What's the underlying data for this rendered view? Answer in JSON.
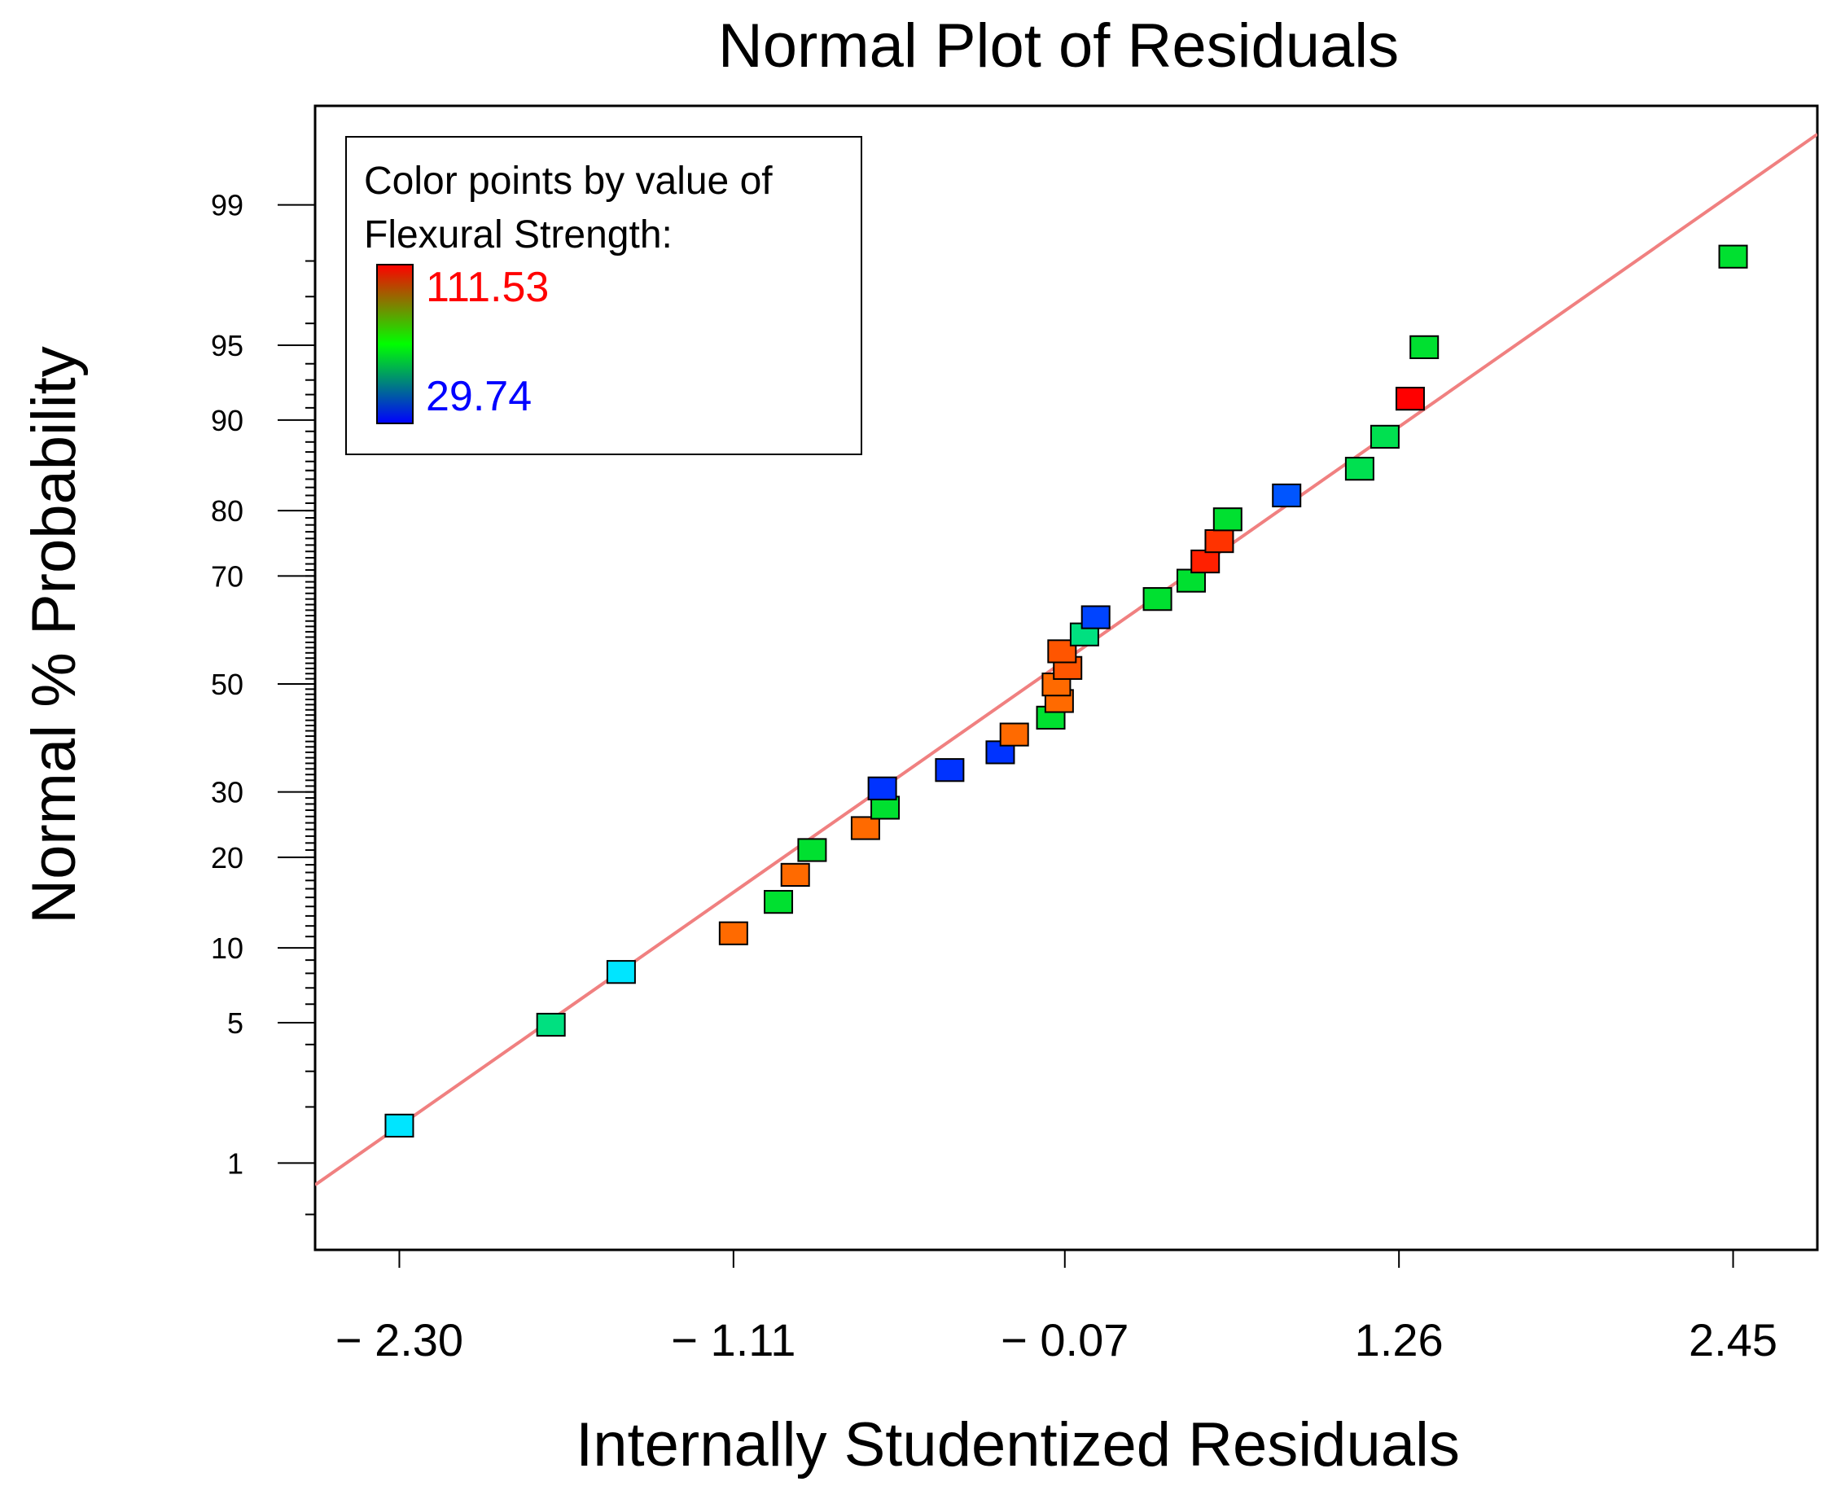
{
  "chart_data": {
    "type": "scatter",
    "title": "Normal Plot of Residuals",
    "xlabel": "Internally Studentized Residuals",
    "ylabel": "Normal % Probability",
    "x_scale": "linear",
    "y_scale": "normal-probability",
    "xlim": [
      -2.6,
      2.75
    ],
    "ylim": [
      0.3,
      99.75
    ],
    "x_tick_labels": [
      "− 2.30",
      "− 1.11",
      "− 0.07",
      "1.26",
      "2.45"
    ],
    "x_tick_values": [
      -2.3,
      -1.11,
      0.07,
      1.26,
      2.45
    ],
    "y_tick_labels": [
      "1",
      "5",
      "10",
      "20",
      "30",
      "50",
      "70",
      "80",
      "90",
      "95",
      "99"
    ],
    "y_tick_values": [
      1,
      5,
      10,
      20,
      30,
      50,
      70,
      80,
      90,
      95,
      99
    ],
    "grid": false,
    "legend": {
      "placement": "top-left",
      "title_line1": "Color points by value of",
      "title_line2": "Flexural Strength:",
      "max_label": "111.53",
      "min_label": "29.74",
      "max_value": 111.53,
      "min_value": 29.74,
      "max_color": "#ff0000",
      "min_color": "#0000ff"
    },
    "reference_line": {
      "color": "#f08080",
      "x": [
        -2.6,
        2.75
      ],
      "y": [
        0.75,
        99.62
      ]
    },
    "marker": "square",
    "points": [
      {
        "x": -2.3,
        "y": 1.6,
        "color": "#00e5ff"
      },
      {
        "x": -1.76,
        "y": 4.9,
        "color": "#00e080"
      },
      {
        "x": -1.51,
        "y": 8.1,
        "color": "#00e5ff"
      },
      {
        "x": -1.11,
        "y": 11.3,
        "color": "#ff6a00"
      },
      {
        "x": -0.95,
        "y": 14.5,
        "color": "#00e030"
      },
      {
        "x": -0.89,
        "y": 17.7,
        "color": "#ff6a00"
      },
      {
        "x": -0.83,
        "y": 21.0,
        "color": "#00e030"
      },
      {
        "x": -0.64,
        "y": 24.2,
        "color": "#ff6a00"
      },
      {
        "x": -0.57,
        "y": 27.4,
        "color": "#00e030"
      },
      {
        "x": -0.58,
        "y": 30.6,
        "color": "#0033ff"
      },
      {
        "x": -0.34,
        "y": 33.8,
        "color": "#0033ff"
      },
      {
        "x": -0.16,
        "y": 37.0,
        "color": "#0033ff"
      },
      {
        "x": -0.11,
        "y": 40.3,
        "color": "#ff6a00"
      },
      {
        "x": 0.02,
        "y": 43.5,
        "color": "#00e030"
      },
      {
        "x": 0.05,
        "y": 46.7,
        "color": "#ff6a00"
      },
      {
        "x": 0.04,
        "y": 49.9,
        "color": "#ff6a00"
      },
      {
        "x": 0.08,
        "y": 53.1,
        "color": "#ff5500"
      },
      {
        "x": 0.06,
        "y": 56.3,
        "color": "#ff5500"
      },
      {
        "x": 0.14,
        "y": 59.5,
        "color": "#00e080"
      },
      {
        "x": 0.18,
        "y": 62.7,
        "color": "#0044ff"
      },
      {
        "x": 0.4,
        "y": 66.0,
        "color": "#00e030"
      },
      {
        "x": 0.52,
        "y": 69.2,
        "color": "#00e030"
      },
      {
        "x": 0.57,
        "y": 72.4,
        "color": "#ff2000"
      },
      {
        "x": 0.62,
        "y": 75.6,
        "color": "#ff3300"
      },
      {
        "x": 0.65,
        "y": 78.8,
        "color": "#00e030"
      },
      {
        "x": 0.86,
        "y": 82.0,
        "color": "#0055ff"
      },
      {
        "x": 1.12,
        "y": 85.2,
        "color": "#00e050"
      },
      {
        "x": 1.21,
        "y": 88.5,
        "color": "#00e050"
      },
      {
        "x": 1.3,
        "y": 91.7,
        "color": "#ff0000"
      },
      {
        "x": 1.35,
        "y": 94.9,
        "color": "#00e030"
      },
      {
        "x": 2.45,
        "y": 98.1,
        "color": "#00e030"
      }
    ]
  }
}
